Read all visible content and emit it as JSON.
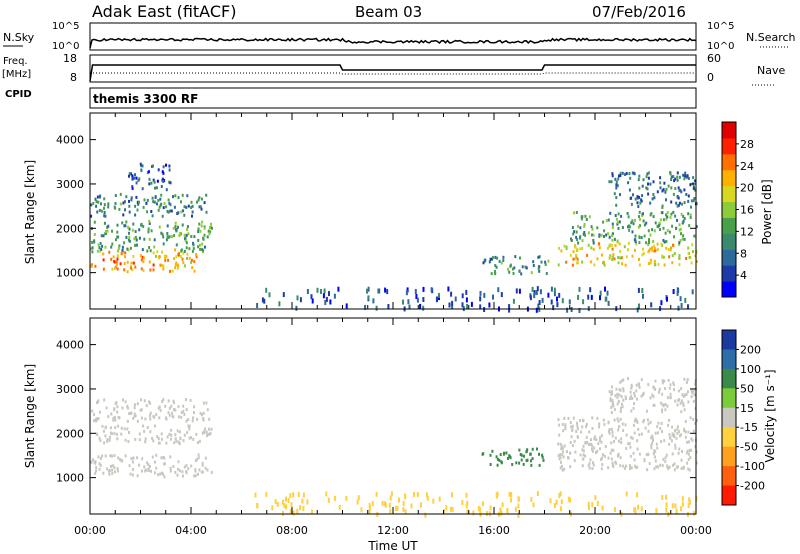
{
  "header": {
    "station": "Adak East (fitACF)",
    "beam": "Beam 03",
    "date": "07/Feb/2016"
  },
  "strip_nsky": {
    "left_label": "N.Sky",
    "right_label": "N.Search",
    "left_ticks": [
      "10^5",
      "10^0"
    ],
    "right_ticks": [
      "10^5",
      "10^0"
    ]
  },
  "strip_freq": {
    "left_label_1": "Freq.",
    "left_label_2": "[MHz]",
    "left_label_3": "CPID",
    "right_label": "Nave",
    "left_ticks": [
      "18",
      "8"
    ],
    "right_ticks": [
      "60",
      "0"
    ]
  },
  "cpid_text": "themis 3300 RF",
  "x_axis": {
    "label": "Time UT",
    "ticks": [
      "00:00",
      "04:00",
      "08:00",
      "12:00",
      "16:00",
      "20:00",
      "00:00"
    ]
  },
  "chart_data": [
    {
      "type": "heatmap",
      "parameter": "power",
      "xlabel": "",
      "ylabel": "Slant Range [km]",
      "xlim_hours": [
        0,
        24
      ],
      "ylim_km": [
        180,
        4600
      ],
      "y_ticks": [
        1000,
        2000,
        3000,
        4000
      ],
      "colorbar": {
        "label": "Power [dB]",
        "range": [
          0,
          32
        ],
        "ticks": [
          4,
          8,
          12,
          16,
          20,
          24,
          28
        ],
        "colors": [
          "#0000ff",
          "#1e3aa8",
          "#2d6a9a",
          "#3b8a6e",
          "#49a04a",
          "#8ccc3a",
          "#d8d820",
          "#ffb000",
          "#ff7000",
          "#ff2000",
          "#e00000"
        ]
      },
      "regions": [
        {
          "t0": 0.0,
          "t1": 4.2,
          "r0": 1050,
          "r1": 1550,
          "value": 22
        },
        {
          "t0": 0.0,
          "t1": 4.8,
          "r0": 1500,
          "r1": 2200,
          "value": 12
        },
        {
          "t0": 0.0,
          "t1": 4.7,
          "r0": 2300,
          "r1": 2800,
          "value": 10
        },
        {
          "t0": 1.5,
          "t1": 3.2,
          "r0": 2900,
          "r1": 3500,
          "value": 6
        },
        {
          "t0": 15.5,
          "t1": 18.2,
          "r0": 1000,
          "r1": 1400,
          "value": 10
        },
        {
          "t0": 18.5,
          "t1": 24.0,
          "r0": 1200,
          "r1": 1700,
          "value": 20
        },
        {
          "t0": 19.0,
          "t1": 24.0,
          "r0": 1700,
          "r1": 2400,
          "value": 12
        },
        {
          "t0": 20.5,
          "t1": 24.0,
          "r0": 2500,
          "r1": 3300,
          "value": 8
        },
        {
          "t0": 6.5,
          "t1": 24.0,
          "r0": 200,
          "r1": 700,
          "value": 6
        }
      ]
    },
    {
      "type": "heatmap",
      "parameter": "velocity",
      "xlabel": "Time UT",
      "ylabel": "Slant Range [km]",
      "xlim_hours": [
        0,
        24
      ],
      "ylim_km": [
        180,
        4600
      ],
      "y_ticks": [
        1000,
        2000,
        3000,
        4000
      ],
      "colorbar": {
        "label": "Velocity [m s⁻¹]",
        "ticks": [
          "200",
          "100",
          "50",
          "15",
          "-15",
          "-50",
          "-100",
          "-200"
        ],
        "colors": [
          "#1a3aa0",
          "#2e6ea8",
          "#3a8a4a",
          "#7acc3a",
          "#c8c8c0",
          "#ffd040",
          "#ffa020",
          "#ff6010",
          "#ff1a00"
        ]
      },
      "regions": [
        {
          "t0": 0.0,
          "t1": 4.8,
          "r0": 1050,
          "r1": 1550,
          "value": 0
        },
        {
          "t0": 0.0,
          "t1": 4.8,
          "r0": 1800,
          "r1": 2200,
          "value": 0
        },
        {
          "t0": 0.0,
          "t1": 4.7,
          "r0": 2300,
          "r1": 2800,
          "value": 0
        },
        {
          "t0": 15.5,
          "t1": 18.0,
          "r0": 1300,
          "r1": 1700,
          "value": 60
        },
        {
          "t0": 18.5,
          "t1": 24.0,
          "r0": 1200,
          "r1": 2400,
          "value": 0
        },
        {
          "t0": 20.5,
          "t1": 24.0,
          "r0": 2500,
          "r1": 3300,
          "value": 0
        },
        {
          "t0": 6.5,
          "t1": 24.0,
          "r0": 200,
          "r1": 700,
          "value": -30
        }
      ]
    }
  ]
}
